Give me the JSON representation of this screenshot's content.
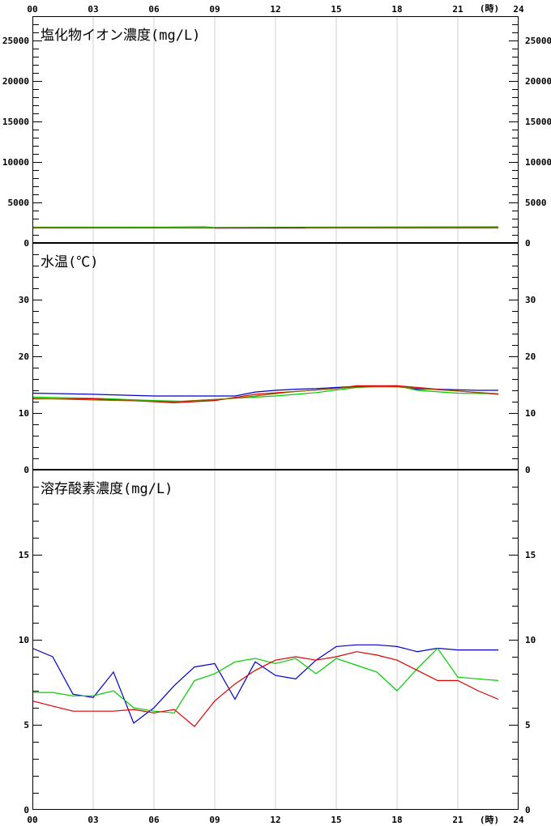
{
  "time_axis": {
    "labels": [
      "00",
      "03",
      "06",
      "09",
      "12",
      "15",
      "18",
      "21",
      "24"
    ],
    "unit_label": "(時)"
  },
  "colors": {
    "background": "#ffffff",
    "frame": "#000000",
    "grid": "#d0d0d0",
    "series_1": "#0000cc",
    "series_2": "#00cc00",
    "series_3": "#dd0000",
    "series_4": "#990099",
    "series_5": "#886600"
  },
  "chart_data": [
    {
      "type": "line",
      "title": "塩化物イオン濃度(mg/L)",
      "xlim": [
        0,
        24
      ],
      "ylim": [
        0,
        28000
      ],
      "yticks": [
        0,
        5000,
        10000,
        15000,
        20000,
        25000
      ],
      "ytick_labels": [
        "0",
        "5000",
        "10000",
        "15000",
        "20000",
        "25000"
      ],
      "grid": true,
      "series": [
        {
          "color": "#00cc00",
          "x": [
            0,
            6.5,
            8.5,
            9,
            13.5,
            23
          ],
          "values": [
            1950,
            1950,
            2000,
            1900,
            1950,
            2000
          ]
        },
        {
          "color": "#dd0000",
          "x": [
            0,
            9,
            23
          ],
          "values": [
            1850,
            1850,
            1850
          ]
        },
        {
          "color": "#886600",
          "x": [
            0,
            9,
            13.5,
            23
          ],
          "values": [
            1900,
            1850,
            1900,
            1900
          ]
        },
        {
          "color": "#990099",
          "x": [
            9,
            13.5
          ],
          "values": [
            1850,
            1850
          ]
        }
      ]
    },
    {
      "type": "line",
      "title": "水温(℃)",
      "xlim": [
        0,
        24
      ],
      "ylim": [
        0,
        40
      ],
      "yticks": [
        0,
        10,
        20,
        30
      ],
      "ytick_labels": [
        "0",
        "10",
        "20",
        "30"
      ],
      "grid": true,
      "series": [
        {
          "color": "#0000cc",
          "x": [
            0,
            3,
            6,
            9,
            10,
            11,
            12,
            13,
            14,
            15,
            16,
            17,
            18,
            19,
            20,
            21,
            22,
            23
          ],
          "values": [
            13.5,
            13.3,
            13.0,
            13.0,
            13.0,
            13.7,
            14.0,
            14.2,
            14.3,
            14.5,
            14.7,
            14.7,
            14.7,
            14.2,
            14.2,
            14.1,
            14.0,
            14.0
          ]
        },
        {
          "color": "#00cc00",
          "x": [
            0,
            3,
            6,
            8,
            10,
            12,
            14,
            16,
            18,
            19,
            21,
            23
          ],
          "values": [
            12.8,
            12.6,
            12.2,
            12.0,
            12.6,
            13.0,
            13.6,
            14.5,
            14.8,
            14.0,
            13.5,
            13.4
          ]
        },
        {
          "color": "#dd0000",
          "x": [
            0,
            3,
            6,
            7,
            9,
            11,
            13,
            15,
            16,
            18,
            20,
            23
          ],
          "values": [
            12.5,
            12.5,
            12.0,
            11.8,
            12.2,
            13.3,
            13.8,
            14.3,
            14.8,
            14.8,
            14.2,
            13.3
          ]
        },
        {
          "color": "#886600",
          "x": [
            0,
            3,
            7,
            10,
            13,
            16,
            18,
            20,
            23
          ],
          "values": [
            12.6,
            12.3,
            12.0,
            12.6,
            13.8,
            14.6,
            14.6,
            14.1,
            13.4
          ]
        }
      ]
    },
    {
      "type": "line",
      "title": "溶存酸素濃度(mg/L)",
      "xlim": [
        0,
        24
      ],
      "ylim": [
        0,
        20
      ],
      "yticks": [
        0,
        5,
        10,
        15
      ],
      "ytick_labels": [
        "0",
        "5",
        "10",
        "15"
      ],
      "grid": true,
      "series": [
        {
          "color": "#0000cc",
          "x": [
            0,
            1,
            2,
            3,
            4,
            5,
            6,
            7,
            8,
            9,
            10,
            11,
            12,
            13,
            14,
            15,
            16,
            17,
            18,
            19,
            20,
            21,
            22,
            23
          ],
          "values": [
            9.5,
            9.0,
            6.8,
            6.6,
            8.1,
            5.1,
            6.0,
            7.3,
            8.4,
            8.6,
            6.5,
            8.7,
            7.9,
            7.7,
            8.8,
            9.6,
            9.7,
            9.7,
            9.6,
            9.3,
            9.5,
            9.4,
            9.4,
            9.4
          ]
        },
        {
          "color": "#00cc00",
          "x": [
            0,
            1,
            2,
            3,
            4,
            5,
            6,
            7,
            8,
            9,
            10,
            11,
            12,
            13,
            14,
            15,
            16,
            17,
            18,
            19,
            20,
            21,
            22,
            23
          ],
          "values": [
            6.9,
            6.9,
            6.7,
            6.7,
            7.0,
            6.0,
            5.8,
            5.7,
            7.6,
            8.0,
            8.7,
            8.9,
            8.6,
            8.9,
            8.0,
            8.9,
            8.5,
            8.1,
            7.0,
            8.3,
            9.5,
            7.8,
            7.7,
            7.6
          ]
        },
        {
          "color": "#dd0000",
          "x": [
            0,
            1,
            2,
            3,
            4,
            5,
            6,
            7,
            8,
            9,
            10,
            11,
            12,
            13,
            14,
            15,
            16,
            17,
            18,
            19,
            20,
            21,
            22,
            23
          ],
          "values": [
            6.4,
            6.1,
            5.8,
            5.8,
            5.8,
            5.9,
            5.7,
            5.9,
            4.9,
            6.4,
            7.4,
            8.2,
            8.8,
            9.0,
            8.8,
            9.0,
            9.3,
            9.1,
            8.8,
            8.2,
            7.6,
            7.6,
            7.0,
            6.5
          ]
        }
      ]
    }
  ]
}
